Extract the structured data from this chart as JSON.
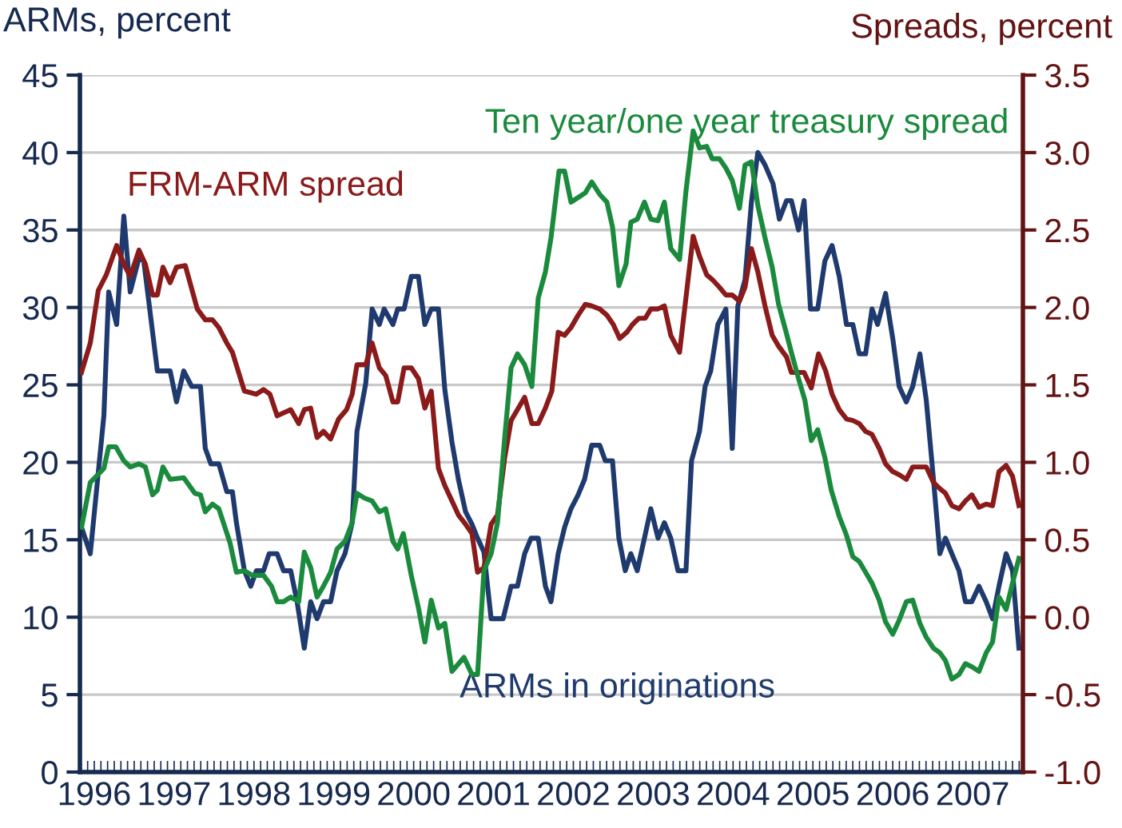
{
  "chart_data": {
    "type": "line",
    "ylabel": "ARMs, percent",
    "y2label": "Spreads, percent",
    "xlim": [
      1996.32,
      2008.13
    ],
    "xticks": [
      {
        "value": 1996.5,
        "label": "1996"
      },
      {
        "value": 1997.5,
        "label": "1997"
      },
      {
        "value": 1998.5,
        "label": "1998"
      },
      {
        "value": 1999.5,
        "label": "1999"
      },
      {
        "value": 2000.5,
        "label": "2000"
      },
      {
        "value": 2001.5,
        "label": "2001"
      },
      {
        "value": 2002.5,
        "label": "2002"
      },
      {
        "value": 2003.5,
        "label": "2003"
      },
      {
        "value": 2004.5,
        "label": "2004"
      },
      {
        "value": 2005.5,
        "label": "2005"
      },
      {
        "value": 2006.5,
        "label": "2006"
      },
      {
        "value": 2007.5,
        "label": "2007"
      }
    ],
    "ylim": [
      0,
      45
    ],
    "yticks": [
      0,
      5,
      10,
      15,
      20,
      25,
      30,
      35,
      40,
      45
    ],
    "y2lim": [
      -1.0,
      3.5
    ],
    "y2ticks": [
      {
        "value": -1,
        "label": "-1.0"
      },
      {
        "value": -0.5,
        "label": "-0.5"
      },
      {
        "value": 0,
        "label": "0.0"
      },
      {
        "value": 0.5,
        "label": "0.5"
      },
      {
        "value": 1,
        "label": "1.0"
      },
      {
        "value": 1.5,
        "label": "1.5"
      },
      {
        "value": 2,
        "label": "2.0"
      },
      {
        "value": 2.5,
        "label": "2.5"
      },
      {
        "value": 3,
        "label": "3.0"
      },
      {
        "value": 3.5,
        "label": "3.5"
      }
    ],
    "grid": "y",
    "legend": false,
    "marker": "none",
    "line_style": "solid",
    "series": [
      {
        "name": "ARMs in originations",
        "color": "#1f3a6e",
        "x": [
          1996.34,
          1996.45,
          1996.62,
          1996.68,
          1996.78,
          1996.87,
          1996.95,
          1997.06,
          1997.12,
          1997.29,
          1997.45,
          1997.53,
          1997.62,
          1997.72,
          1997.83,
          1997.89,
          1997.96,
          1998.06,
          1998.16,
          1998.23,
          1998.28,
          1998.38,
          1998.46,
          1998.53,
          1998.62,
          1998.69,
          1998.79,
          1998.87,
          1998.96,
          1999.04,
          1999.13,
          1999.21,
          1999.29,
          1999.37,
          1999.46,
          1999.54,
          1999.64,
          1999.73,
          1999.79,
          1999.9,
          1999.98,
          2000.07,
          2000.13,
          2000.24,
          2000.3,
          2000.38,
          2000.47,
          2000.56,
          2000.64,
          2000.72,
          2000.81,
          2000.89,
          2000.98,
          2001.06,
          2001.15,
          2001.23,
          2001.3,
          2001.38,
          2001.47,
          2001.62,
          2001.72,
          2001.8,
          2001.89,
          2001.97,
          2002.06,
          2002.15,
          2002.22,
          2002.31,
          2002.39,
          2002.47,
          2002.56,
          2002.64,
          2002.73,
          2002.83,
          2002.9,
          2002.99,
          2003.07,
          2003.15,
          2003.22,
          2003.3,
          2003.39,
          2003.47,
          2003.56,
          2003.64,
          2003.72,
          2003.81,
          2003.91,
          2003.98,
          2004.08,
          2004.15,
          2004.22,
          2004.31,
          2004.41,
          2004.49,
          2004.56,
          2004.65,
          2004.73,
          2004.81,
          2004.9,
          2005.0,
          2005.08,
          2005.17,
          2005.23,
          2005.32,
          2005.39,
          2005.47,
          2005.56,
          2005.65,
          2005.74,
          2005.83,
          2005.92,
          2006.0,
          2006.08,
          2006.16,
          2006.24,
          2006.31,
          2006.41,
          2006.5,
          2006.58,
          2006.67,
          2006.75,
          2006.84,
          2006.92,
          2007.01,
          2007.09,
          2007.16,
          2007.24,
          2007.33,
          2007.41,
          2007.49,
          2007.58,
          2007.67,
          2007.75,
          2007.83,
          2007.92,
          2008.0,
          2008.08
        ],
        "values": [
          15.8,
          14.1,
          23,
          31,
          28.9,
          35.9,
          31,
          33.2,
          33,
          25.9,
          25.9,
          23.9,
          25.9,
          24.9,
          24.9,
          20.9,
          19.9,
          19.9,
          18.1,
          18.1,
          16.1,
          13,
          12,
          13,
          13,
          14.1,
          14.1,
          13,
          13,
          11,
          8,
          11,
          9.9,
          11,
          11,
          13,
          14.1,
          16.1,
          22,
          25.1,
          29.9,
          28.9,
          29.9,
          28.9,
          29.9,
          29.9,
          32,
          32,
          28.9,
          29.9,
          29.9,
          24.7,
          21.3,
          18.9,
          16.8,
          16,
          15.1,
          14.2,
          9.9,
          9.9,
          12,
          12,
          14.1,
          15.1,
          15.1,
          12,
          11,
          14.1,
          15.8,
          17,
          17.9,
          18.9,
          21.1,
          21.1,
          20.1,
          20.1,
          15.1,
          13,
          14.1,
          13,
          15.1,
          17,
          15.1,
          16.1,
          15.1,
          13,
          13,
          20.1,
          22,
          24.9,
          25.9,
          28.9,
          29.9,
          20.9,
          30.1,
          31.8,
          36.8,
          40,
          39.2,
          38,
          35.7,
          36.9,
          36.9,
          35,
          36.9,
          29.9,
          29.9,
          33,
          34,
          32,
          28.9,
          28.9,
          27,
          27,
          29.9,
          28.9,
          30.9,
          28,
          24.9,
          23.9,
          24.9,
          27,
          24,
          18.9,
          14.1,
          15.1,
          14.1,
          13,
          11,
          11,
          12,
          11,
          9.9,
          12,
          14.1,
          13,
          8
        ]
      },
      {
        "name": "FRM-ARM spread",
        "color": "#8b1a1a",
        "axis": "y2",
        "x": [
          1996.34,
          1996.45,
          1996.55,
          1996.65,
          1996.78,
          1996.87,
          1996.95,
          1997.06,
          1997.14,
          1997.23,
          1997.29,
          1997.36,
          1997.45,
          1997.53,
          1997.64,
          1997.79,
          1997.89,
          1997.98,
          1998.06,
          1998.16,
          1998.23,
          1998.38,
          1998.53,
          1998.62,
          1998.7,
          1998.79,
          1998.96,
          1999.06,
          1999.13,
          1999.21,
          1999.29,
          1999.37,
          1999.46,
          1999.56,
          1999.66,
          1999.73,
          1999.79,
          1999.9,
          1999.98,
          2000.07,
          2000.15,
          2000.24,
          2000.3,
          2000.38,
          2000.47,
          2000.56,
          2000.64,
          2000.72,
          2000.81,
          2000.89,
          2000.98,
          2001.06,
          2001.15,
          2001.23,
          2001.3,
          2001.38,
          2001.47,
          2001.55,
          2001.64,
          2001.72,
          2001.8,
          2001.89,
          2001.98,
          2002.06,
          2002.15,
          2002.23,
          2002.31,
          2002.39,
          2002.47,
          2002.56,
          2002.65,
          2002.73,
          2002.83,
          2002.92,
          2003.0,
          2003.08,
          2003.17,
          2003.24,
          2003.32,
          2003.4,
          2003.47,
          2003.56,
          2003.64,
          2003.72,
          2003.83,
          2004.0,
          2004.08,
          2004.17,
          2004.24,
          2004.33,
          2004.41,
          2004.49,
          2004.58,
          2004.65,
          2004.73,
          2004.81,
          2004.9,
          2004.99,
          2005.07,
          2005.17,
          2005.23,
          2005.32,
          2005.39,
          2005.48,
          2005.57,
          2005.66,
          2005.74,
          2005.83,
          2005.92,
          2006.0,
          2006.08,
          2006.16,
          2006.24,
          2006.33,
          2006.41,
          2006.5,
          2006.58,
          2006.67,
          2006.75,
          2006.84,
          2006.92,
          2007.01,
          2007.09,
          2007.16,
          2007.24,
          2007.33,
          2007.41,
          2007.49,
          2007.58,
          2007.67,
          2007.75,
          2007.83,
          2007.92,
          2008.0,
          2008.08
        ],
        "values": [
          1.58,
          1.77,
          2.11,
          2.21,
          2.4,
          2.28,
          2.2,
          2.37,
          2.28,
          2.08,
          2.08,
          2.26,
          2.16,
          2.26,
          2.27,
          1.99,
          1.92,
          1.92,
          1.87,
          1.77,
          1.71,
          1.46,
          1.44,
          1.47,
          1.44,
          1.3,
          1.34,
          1.25,
          1.34,
          1.35,
          1.16,
          1.2,
          1.15,
          1.28,
          1.34,
          1.44,
          1.63,
          1.63,
          1.77,
          1.61,
          1.56,
          1.39,
          1.39,
          1.61,
          1.61,
          1.54,
          1.35,
          1.46,
          0.96,
          0.85,
          0.75,
          0.66,
          0.6,
          0.54,
          0.29,
          0.32,
          0.6,
          0.66,
          1.03,
          1.27,
          1.34,
          1.42,
          1.25,
          1.25,
          1.35,
          1.46,
          1.84,
          1.82,
          1.87,
          1.95,
          2.02,
          2.01,
          1.99,
          1.95,
          1.89,
          1.8,
          1.84,
          1.89,
          1.93,
          1.93,
          1.99,
          1.99,
          2.01,
          1.82,
          1.71,
          2.46,
          2.33,
          2.21,
          2.18,
          2.13,
          2.08,
          2.08,
          2.04,
          2.13,
          2.38,
          2.23,
          2.01,
          1.82,
          1.75,
          1.68,
          1.58,
          1.58,
          1.58,
          1.48,
          1.7,
          1.59,
          1.44,
          1.34,
          1.28,
          1.27,
          1.25,
          1.2,
          1.18,
          1.09,
          0.99,
          0.94,
          0.92,
          0.89,
          0.97,
          0.97,
          0.97,
          0.87,
          0.83,
          0.8,
          0.72,
          0.7,
          0.75,
          0.79,
          0.71,
          0.73,
          0.72,
          0.94,
          0.98,
          0.91,
          0.72
        ]
      },
      {
        "name": "Ten year/one year treasury spread",
        "color": "#1a8a3c",
        "axis": "y2",
        "x": [
          1996.34,
          1996.45,
          1996.62,
          1996.68,
          1996.77,
          1996.87,
          1996.95,
          1997.06,
          1997.14,
          1997.23,
          1997.29,
          1997.36,
          1997.45,
          1997.62,
          1997.76,
          1997.83,
          1997.89,
          1997.98,
          1998.06,
          1998.2,
          1998.28,
          1998.38,
          1998.48,
          1998.62,
          1998.72,
          1998.79,
          1998.87,
          1998.96,
          1999.06,
          1999.13,
          1999.21,
          1999.29,
          1999.37,
          1999.46,
          1999.54,
          1999.64,
          1999.73,
          1999.79,
          1999.88,
          1999.98,
          2000.07,
          2000.15,
          2000.24,
          2000.3,
          2000.37,
          2000.47,
          2000.56,
          2000.64,
          2000.72,
          2000.81,
          2000.89,
          2000.98,
          2001.13,
          2001.23,
          2001.3,
          2001.38,
          2001.47,
          2001.55,
          2001.64,
          2001.72,
          2001.8,
          2001.89,
          2001.98,
          2002.06,
          2002.15,
          2002.22,
          2002.32,
          2002.39,
          2002.47,
          2002.56,
          2002.65,
          2002.73,
          2002.83,
          2002.92,
          2002.99,
          2003.07,
          2003.16,
          2003.22,
          2003.3,
          2003.39,
          2003.47,
          2003.56,
          2003.64,
          2003.72,
          2003.83,
          2003.91,
          2004.0,
          2004.08,
          2004.17,
          2004.24,
          2004.33,
          2004.41,
          2004.49,
          2004.58,
          2004.65,
          2004.73,
          2004.81,
          2004.9,
          2004.99,
          2005.07,
          2005.17,
          2005.23,
          2005.32,
          2005.4,
          2005.48,
          2005.56,
          2005.65,
          2005.73,
          2005.83,
          2005.92,
          2006.0,
          2006.08,
          2006.16,
          2006.24,
          2006.33,
          2006.41,
          2006.5,
          2006.58,
          2006.67,
          2006.75,
          2006.84,
          2006.92,
          2007.01,
          2007.09,
          2007.16,
          2007.24,
          2007.33,
          2007.41,
          2007.49,
          2007.58,
          2007.67,
          2007.75,
          2007.83,
          2007.92,
          2008.0,
          2008.08
        ],
        "values": [
          0.58,
          0.87,
          0.96,
          1.1,
          1.1,
          1.01,
          0.97,
          0.99,
          0.97,
          0.79,
          0.82,
          0.97,
          0.89,
          0.9,
          0.8,
          0.79,
          0.68,
          0.73,
          0.7,
          0.48,
          0.29,
          0.3,
          0.27,
          0.27,
          0.2,
          0.1,
          0.1,
          0.13,
          0.1,
          0.42,
          0.32,
          0.13,
          0.2,
          0.29,
          0.44,
          0.49,
          0.61,
          0.8,
          0.77,
          0.75,
          0.68,
          0.7,
          0.49,
          0.44,
          0.54,
          0.27,
          0.06,
          -0.16,
          0.11,
          -0.07,
          -0.04,
          -0.35,
          -0.26,
          -0.37,
          -0.37,
          0.3,
          0.41,
          0.61,
          1.16,
          1.61,
          1.7,
          1.63,
          1.49,
          2.06,
          2.23,
          2.45,
          2.88,
          2.88,
          2.68,
          2.71,
          2.74,
          2.81,
          2.73,
          2.68,
          2.52,
          2.14,
          2.28,
          2.55,
          2.57,
          2.68,
          2.57,
          2.56,
          2.68,
          2.38,
          2.31,
          2.75,
          3.14,
          3.03,
          3.04,
          2.96,
          2.96,
          2.9,
          2.82,
          2.64,
          2.92,
          2.94,
          2.66,
          2.45,
          2.26,
          2.02,
          1.83,
          1.71,
          1.54,
          1.4,
          1.14,
          1.21,
          1.03,
          0.82,
          0.65,
          0.53,
          0.39,
          0.36,
          0.29,
          0.22,
          0.11,
          -0.03,
          -0.11,
          -0.02,
          0.1,
          0.11,
          -0.04,
          -0.13,
          -0.2,
          -0.23,
          -0.28,
          -0.4,
          -0.37,
          -0.3,
          -0.32,
          -0.35,
          -0.23,
          -0.16,
          0.13,
          0.05,
          0.22,
          0.38
        ]
      }
    ]
  }
}
